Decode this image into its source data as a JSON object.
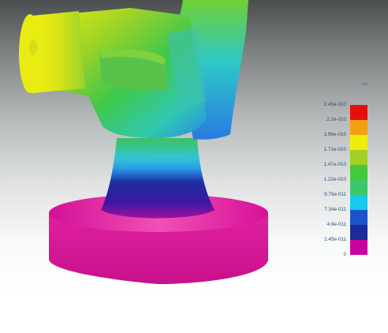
{
  "legend": {
    "unit": "mm",
    "ticks": [
      "2.45e-010",
      "2.2e-010",
      "1.96e-010",
      "1.71e-010",
      "1.47e-010",
      "1.22e-010",
      "9.79e-011",
      "7.34e-011",
      "4.9e-011",
      "2.45e-011",
      "0"
    ],
    "colors": [
      "#e4007c",
      "#c8009e",
      "#1e2a9a",
      "#1c54c8",
      "#18c8ee",
      "#3cc86a",
      "#44c83c",
      "#a2d024",
      "#f0ec10",
      "#f2a010",
      "#e4100c"
    ]
  }
}
